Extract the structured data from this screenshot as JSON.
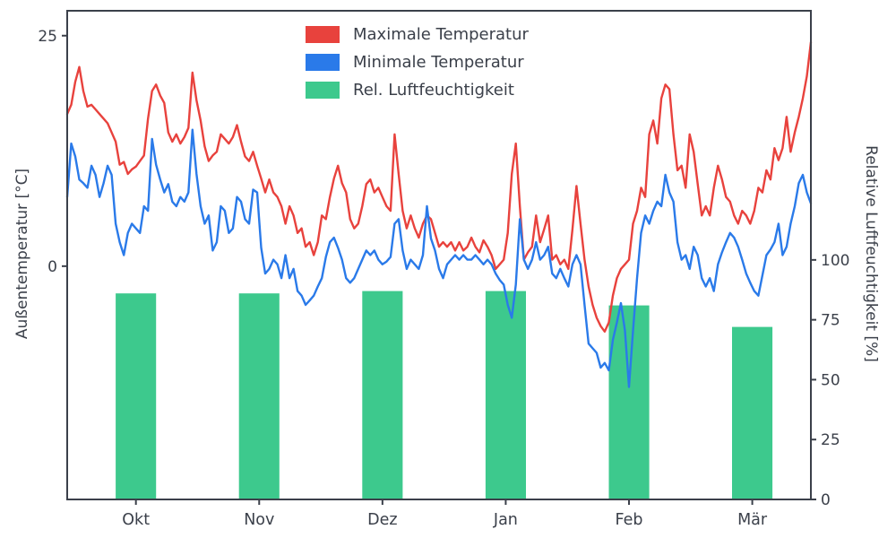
{
  "chart_data": {
    "type": "line+bar",
    "title": "",
    "grid": false,
    "legend": {
      "position": "upper center"
    },
    "x": {
      "unit": "day-index",
      "min": 0,
      "max": 184,
      "month_ticks": [
        {
          "label": "Okt",
          "day": 17
        },
        {
          "label": "Nov",
          "day": 47.5
        },
        {
          "label": "Dez",
          "day": 78
        },
        {
          "label": "Jan",
          "day": 108.5
        },
        {
          "label": "Feb",
          "day": 139
        },
        {
          "label": "Mär",
          "day": 169.5
        }
      ]
    },
    "left_axis": {
      "label": "Außentemperatur [°C]",
      "ticks": [
        0,
        25
      ],
      "ylim": [
        -25.3,
        27.7
      ]
    },
    "right_axis": {
      "label": "Relative Luftfeuchtigkeit [%]",
      "ticks": [
        0,
        25,
        50,
        75,
        100
      ],
      "ylim": [
        0,
        204
      ]
    },
    "series": [
      {
        "name": "Maximale Temperatur",
        "type": "line",
        "axis": "left",
        "color": "#e8423d",
        "values": [
          16.5,
          17.5,
          20,
          21.6,
          19,
          17.3,
          17.5,
          17,
          16.5,
          16,
          15.5,
          14.5,
          13.5,
          11,
          11.3,
          10,
          10.5,
          10.8,
          11.4,
          12,
          16,
          19,
          19.7,
          18.5,
          17.7,
          14.5,
          13.5,
          14.3,
          13.3,
          14,
          15,
          21,
          18,
          15.8,
          13,
          11.4,
          12,
          12.4,
          14.3,
          13.8,
          13.3,
          14,
          15.3,
          13.5,
          11.9,
          11.4,
          12.4,
          10.9,
          9.5,
          8,
          9.4,
          8,
          7.5,
          6.5,
          4.6,
          6.5,
          5.5,
          3.6,
          4.1,
          2.1,
          2.6,
          1.2,
          2.6,
          5.5,
          5.1,
          7.5,
          9.5,
          10.9,
          9,
          8,
          5.1,
          4.1,
          4.6,
          6.5,
          8.9,
          9.4,
          8,
          8.5,
          7.5,
          6.5,
          6,
          14.3,
          10,
          6,
          4.1,
          5.5,
          4.1,
          3.1,
          4.6,
          5.5,
          5.1,
          3.6,
          2.1,
          2.6,
          2.1,
          2.6,
          1.7,
          2.6,
          1.7,
          2.1,
          3.1,
          2.1,
          1.5,
          2.8,
          2.1,
          1.2,
          -0.3,
          0.2,
          0.7,
          3.6,
          10,
          13.3,
          6.5,
          0.7,
          1.5,
          2.1,
          5.5,
          2.6,
          4,
          5.5,
          0.7,
          1.2,
          0.2,
          0.7,
          -0.3,
          4,
          8.7,
          4.6,
          0.7,
          -2.2,
          -4.2,
          -5.6,
          -6.5,
          -7.1,
          -6.1,
          -3.2,
          -1.3,
          -0.3,
          0.2,
          0.7,
          4.6,
          6,
          8.5,
          7.5,
          14.3,
          15.8,
          13.3,
          18.2,
          19.7,
          19.2,
          14.3,
          10.4,
          10.9,
          8.5,
          14.3,
          12.4,
          8.9,
          5.5,
          6.5,
          5.5,
          8.5,
          10.9,
          9.4,
          7.5,
          7,
          5.5,
          4.6,
          6,
          5.5,
          4.6,
          6,
          8.5,
          8,
          10.4,
          9.4,
          12.8,
          11.5,
          12.8,
          16.2,
          12.4,
          14.5,
          16.2,
          18.2,
          20.6,
          24.3
        ]
      },
      {
        "name": "Minimale Temperatur",
        "type": "line",
        "axis": "left",
        "color": "#2a7ae9",
        "values": [
          7.5,
          13.3,
          11.9,
          9.4,
          9,
          8.5,
          10.9,
          9.9,
          7.5,
          9,
          10.9,
          9.9,
          4.6,
          2.6,
          1.2,
          3.6,
          4.6,
          4.1,
          3.6,
          6.5,
          6,
          13.8,
          11,
          9.4,
          8,
          8.9,
          7,
          6.5,
          7.5,
          7,
          8,
          14.8,
          10,
          6.5,
          4.6,
          5.5,
          1.7,
          2.6,
          6.5,
          6,
          3.6,
          4.1,
          7.5,
          7,
          5.1,
          4.6,
          8.3,
          8,
          2,
          -0.8,
          -0.3,
          0.7,
          0.2,
          -1.3,
          1.2,
          -1.3,
          -0.3,
          -2.7,
          -3.2,
          -4.2,
          -3.7,
          -3.2,
          -2.2,
          -1.3,
          1,
          2.6,
          3.1,
          2,
          0.7,
          -1.3,
          -1.8,
          -1.3,
          -0.3,
          0.7,
          1.7,
          1.2,
          1.7,
          0.7,
          0.2,
          0.5,
          1,
          4.6,
          5.1,
          1.7,
          -0.3,
          0.7,
          0.2,
          -0.3,
          1.2,
          6.5,
          3,
          1.7,
          -0.3,
          -1.3,
          0.2,
          0.7,
          1.2,
          0.7,
          1.2,
          0.7,
          0.7,
          1.2,
          0.7,
          0.2,
          0.7,
          0.2,
          -0.8,
          -1.5,
          -2,
          -4.2,
          -5.6,
          -2,
          5.1,
          0.7,
          -0.3,
          0.7,
          2.6,
          0.7,
          1.2,
          2.1,
          -0.8,
          -1.3,
          -0.3,
          -1.3,
          -2.2,
          0.2,
          1.2,
          0.2,
          -4.2,
          -8.4,
          -8.9,
          -9.4,
          -11,
          -10.5,
          -11.3,
          -8,
          -6.1,
          -4,
          -7,
          -13.1,
          -7,
          -1.3,
          3.6,
          5.5,
          4.6,
          6,
          7,
          6.5,
          9.9,
          8,
          7,
          2.6,
          0.7,
          1.2,
          -0.3,
          2.1,
          1.2,
          -1.3,
          -2.2,
          -1.3,
          -2.7,
          0.2,
          1.5,
          2.6,
          3.6,
          3.1,
          2.1,
          0.7,
          -0.8,
          -1.8,
          -2.7,
          -3.2,
          -1,
          1.2,
          1.8,
          2.6,
          4.6,
          1.2,
          2.1,
          4.6,
          6.5,
          9,
          9.9,
          8,
          6.8
        ]
      },
      {
        "name": "Rel. Luftfeuchtigkeit",
        "type": "bar",
        "axis": "right",
        "color": "#3dc98d",
        "bar_width_days": 10,
        "bars": [
          {
            "label": "Okt",
            "day": 17,
            "value": 86
          },
          {
            "label": "Nov",
            "day": 47.5,
            "value": 86
          },
          {
            "label": "Dez",
            "day": 78,
            "value": 87
          },
          {
            "label": "Jan",
            "day": 108.5,
            "value": 87
          },
          {
            "label": "Feb",
            "day": 139,
            "value": 81
          },
          {
            "label": "Mär",
            "day": 169.5,
            "value": 72
          }
        ]
      }
    ]
  }
}
